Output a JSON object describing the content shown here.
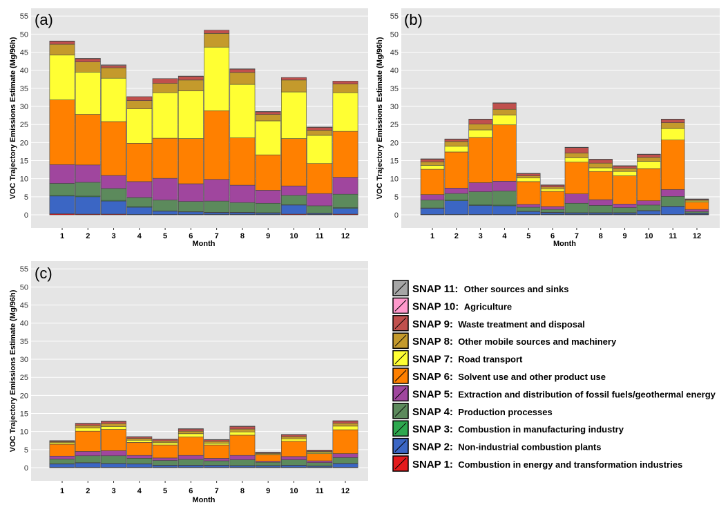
{
  "chart_data": [
    {
      "type": "bar",
      "panel_label": "(a)",
      "stacked": true,
      "xlabel": "Month",
      "ylabel": "VOC Trajectory Emissions Estimate (Mg/96h)",
      "ylim": [
        0,
        56
      ],
      "yticks": [
        0,
        5,
        10,
        15,
        20,
        25,
        30,
        35,
        40,
        45,
        50,
        55
      ],
      "categories": [
        "1",
        "2",
        "3",
        "4",
        "5",
        "6",
        "7",
        "8",
        "9",
        "10",
        "11",
        "12"
      ],
      "grid": true,
      "series": [
        {
          "name": "SNAP 1",
          "values": [
            0.3,
            0.2,
            0.2,
            0.1,
            0.1,
            0.1,
            0.1,
            0.1,
            0.1,
            0.2,
            0.1,
            0.2
          ]
        },
        {
          "name": "SNAP 2",
          "values": [
            4.9,
            4.8,
            3.6,
            2.0,
            0.9,
            0.7,
            0.5,
            0.5,
            0.4,
            2.5,
            0.3,
            1.6
          ]
        },
        {
          "name": "SNAP 3",
          "values": [
            0.2,
            0.2,
            0.2,
            0.2,
            0.1,
            0.1,
            0.1,
            0.1,
            0.1,
            0.1,
            0.1,
            0.2
          ]
        },
        {
          "name": "SNAP 4",
          "values": [
            3.3,
            3.8,
            3.3,
            2.5,
            3.0,
            2.8,
            3.1,
            2.7,
            2.6,
            2.6,
            2.0,
            3.7
          ]
        },
        {
          "name": "SNAP 5",
          "values": [
            5.2,
            4.8,
            3.6,
            4.4,
            6.0,
            4.9,
            6.0,
            4.8,
            3.6,
            2.6,
            3.4,
            4.7
          ]
        },
        {
          "name": "SNAP 6",
          "values": [
            17.9,
            14.0,
            14.9,
            10.6,
            11.1,
            12.5,
            19.0,
            13.1,
            9.8,
            13.1,
            8.3,
            12.7
          ]
        },
        {
          "name": "SNAP 7",
          "values": [
            12.4,
            11.7,
            12.0,
            9.5,
            12.6,
            13.2,
            17.6,
            14.8,
            9.4,
            12.9,
            7.8,
            10.7
          ]
        },
        {
          "name": "SNAP 8",
          "values": [
            3.0,
            2.8,
            2.9,
            2.3,
            2.6,
            3.0,
            3.8,
            3.3,
            1.8,
            3.3,
            1.4,
            2.4
          ]
        },
        {
          "name": "SNAP 9",
          "values": [
            0.8,
            0.9,
            0.6,
            1.1,
            1.3,
            1.0,
            0.9,
            0.9,
            0.7,
            0.7,
            0.8,
            0.8
          ]
        },
        {
          "name": "SNAP 10",
          "values": [
            0.0,
            0.0,
            0.0,
            0.0,
            0.0,
            0.0,
            0.0,
            0.0,
            0.0,
            0.0,
            0.0,
            0.0
          ]
        },
        {
          "name": "SNAP 11",
          "values": [
            0.1,
            0.1,
            0.2,
            0.0,
            0.0,
            0.1,
            0.0,
            0.1,
            0.1,
            0.0,
            0.1,
            0.0
          ]
        }
      ]
    },
    {
      "type": "bar",
      "panel_label": "(b)",
      "stacked": true,
      "xlabel": "Month",
      "ylabel": "VOC Trajectory Emissions Estimate (Mg/96h)",
      "ylim": [
        0,
        56
      ],
      "yticks": [
        0,
        5,
        10,
        15,
        20,
        25,
        30,
        35,
        40,
        45,
        50,
        55
      ],
      "categories": [
        "1",
        "2",
        "3",
        "4",
        "5",
        "6",
        "7",
        "8",
        "9",
        "10",
        "11",
        "12"
      ],
      "grid": true,
      "series": [
        {
          "name": "SNAP 1",
          "values": [
            0.1,
            0.1,
            0.1,
            0.1,
            0.1,
            0.1,
            0.1,
            0.1,
            0.1,
            0.1,
            0.1,
            0.1
          ]
        },
        {
          "name": "SNAP 2",
          "values": [
            1.7,
            3.8,
            2.5,
            2.4,
            0.8,
            0.5,
            0.4,
            0.4,
            0.4,
            1.0,
            2.2,
            0.3
          ]
        },
        {
          "name": "SNAP 3",
          "values": [
            0.1,
            0.2,
            0.2,
            0.2,
            0.1,
            0.1,
            0.1,
            0.1,
            0.1,
            0.1,
            0.1,
            0.1
          ]
        },
        {
          "name": "SNAP 4",
          "values": [
            2.2,
            1.8,
            3.6,
            3.9,
            1.1,
            0.8,
            2.6,
            2.0,
            1.4,
            1.5,
            2.7,
            0.4
          ]
        },
        {
          "name": "SNAP 5",
          "values": [
            1.5,
            1.5,
            2.5,
            2.7,
            0.8,
            0.8,
            2.6,
            1.6,
            1.0,
            1.2,
            1.9,
            0.6
          ]
        },
        {
          "name": "SNAP 6",
          "values": [
            7.0,
            10.0,
            12.5,
            15.6,
            6.3,
            4.2,
            8.8,
            7.8,
            7.8,
            8.9,
            13.7,
            2.0
          ]
        },
        {
          "name": "SNAP 7",
          "values": [
            1.1,
            1.6,
            2.1,
            2.7,
            1.0,
            0.7,
            1.2,
            1.0,
            1.2,
            2.0,
            3.2,
            0.3
          ]
        },
        {
          "name": "SNAP 8",
          "values": [
            1.0,
            1.3,
            1.6,
            1.6,
            0.6,
            0.5,
            1.3,
            1.3,
            0.9,
            1.1,
            1.6,
            0.3
          ]
        },
        {
          "name": "SNAP 9",
          "values": [
            0.7,
            0.6,
            1.3,
            1.7,
            0.6,
            0.5,
            1.5,
            1.0,
            0.6,
            0.8,
            0.9,
            0.2
          ]
        },
        {
          "name": "SNAP 10",
          "values": [
            0.0,
            0.0,
            0.0,
            0.0,
            0.0,
            0.0,
            0.0,
            0.0,
            0.0,
            0.0,
            0.0,
            0.0
          ]
        },
        {
          "name": "SNAP 11",
          "values": [
            0.1,
            0.1,
            0.1,
            0.1,
            0.1,
            0.1,
            0.1,
            0.1,
            0.1,
            0.1,
            0.1,
            0.1
          ]
        }
      ]
    },
    {
      "type": "bar",
      "panel_label": "(c)",
      "stacked": true,
      "xlabel": "Month",
      "ylabel": "VOC Trajectory Emissions Estimate (Mg/96h)",
      "ylim": [
        0,
        56
      ],
      "yticks": [
        0,
        5,
        10,
        15,
        20,
        25,
        30,
        35,
        40,
        45,
        50,
        55
      ],
      "categories": [
        "1",
        "2",
        "3",
        "4",
        "5",
        "6",
        "7",
        "8",
        "9",
        "10",
        "11",
        "12"
      ],
      "grid": true,
      "series": [
        {
          "name": "SNAP 1",
          "values": [
            0.1,
            0.1,
            0.1,
            0.1,
            0.1,
            0.1,
            0.1,
            0.1,
            0.1,
            0.1,
            0.1,
            0.1
          ]
        },
        {
          "name": "SNAP 2",
          "values": [
            0.9,
            1.2,
            1.0,
            0.9,
            0.5,
            0.5,
            0.5,
            0.4,
            0.4,
            0.5,
            0.3,
            1.0
          ]
        },
        {
          "name": "SNAP 3",
          "values": [
            0.1,
            0.1,
            0.1,
            0.1,
            0.1,
            0.1,
            0.1,
            0.1,
            0.1,
            0.1,
            0.1,
            0.1
          ]
        },
        {
          "name": "SNAP 4",
          "values": [
            1.3,
            1.9,
            2.1,
            1.5,
            1.3,
            1.6,
            1.2,
            1.6,
            0.9,
            1.5,
            0.9,
            1.6
          ]
        },
        {
          "name": "SNAP 5",
          "values": [
            0.8,
            1.2,
            1.4,
            0.8,
            0.7,
            1.1,
            0.7,
            1.2,
            0.3,
            0.9,
            0.5,
            1.1
          ]
        },
        {
          "name": "SNAP 6",
          "values": [
            3.3,
            5.6,
            5.9,
            3.6,
            3.6,
            5.1,
            3.7,
            5.6,
            1.8,
            4.2,
            2.0,
            6.6
          ]
        },
        {
          "name": "SNAP 7",
          "values": [
            0.4,
            0.9,
            0.8,
            0.6,
            0.6,
            0.9,
            0.5,
            0.9,
            0.2,
            0.7,
            0.3,
            1.0
          ]
        },
        {
          "name": "SNAP 8",
          "values": [
            0.3,
            0.7,
            0.8,
            0.5,
            0.5,
            0.7,
            0.5,
            0.8,
            0.2,
            0.6,
            0.3,
            0.8
          ]
        },
        {
          "name": "SNAP 9",
          "values": [
            0.2,
            0.5,
            0.6,
            0.4,
            0.4,
            0.6,
            0.4,
            0.7,
            0.2,
            0.5,
            0.3,
            0.6
          ]
        },
        {
          "name": "SNAP 10",
          "values": [
            0.0,
            0.0,
            0.0,
            0.0,
            0.0,
            0.0,
            0.0,
            0.0,
            0.0,
            0.0,
            0.0,
            0.0
          ]
        },
        {
          "name": "SNAP 11",
          "values": [
            0.1,
            0.1,
            0.1,
            0.1,
            0.1,
            0.1,
            0.1,
            0.1,
            0.1,
            0.1,
            0.1,
            0.1
          ]
        }
      ]
    }
  ],
  "legend": {
    "items": [
      {
        "code": "SNAP 11:",
        "label": "Other sources and sinks",
        "color": "#a6a6a6"
      },
      {
        "code": "SNAP 10:",
        "label": "Agriculture",
        "color": "#ff99cc"
      },
      {
        "code": "SNAP 9:",
        "label": "Waste treatment and disposal",
        "color": "#c0504d"
      },
      {
        "code": "SNAP 8:",
        "label": "Other mobile sources and machinery",
        "color": "#c49a2c"
      },
      {
        "code": "SNAP 7:",
        "label": "Road transport",
        "color": "#ffff33"
      },
      {
        "code": "SNAP 6:",
        "label": "Solvent use and other product use",
        "color": "#ff8000"
      },
      {
        "code": "SNAP 5:",
        "label": "Extraction and distribution of fossil fuels/geothermal energy",
        "color": "#a0469e"
      },
      {
        "code": "SNAP 4:",
        "label": "Production processes",
        "color": "#5c8a5c"
      },
      {
        "code": "SNAP 3:",
        "label": "Combustion in manufacturing industry",
        "color": "#2ea84f"
      },
      {
        "code": "SNAP 2:",
        "label": "Non-industrial combustion plants",
        "color": "#3b66c4"
      },
      {
        "code": "SNAP 1:",
        "label": "Combustion in energy and transformation industries",
        "color": "#e41a1c"
      }
    ]
  }
}
